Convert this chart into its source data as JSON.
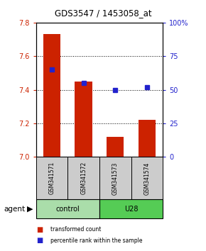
{
  "title": "GDS3547 / 1453058_at",
  "samples": [
    "GSM341571",
    "GSM341572",
    "GSM341573",
    "GSM341574"
  ],
  "bar_values": [
    7.73,
    7.45,
    7.12,
    7.22
  ],
  "percentile_pct": [
    65,
    55,
    50,
    52
  ],
  "bar_color": "#cc2200",
  "marker_color": "#2222cc",
  "ylim_left": [
    7.0,
    7.8
  ],
  "ylim_right": [
    0,
    100
  ],
  "yticks_left": [
    7.0,
    7.2,
    7.4,
    7.6,
    7.8
  ],
  "yticks_right": [
    0,
    25,
    50,
    75,
    100
  ],
  "ytick_labels_right": [
    "0",
    "25",
    "50",
    "75",
    "100%"
  ],
  "group_labels": [
    "control",
    "U28"
  ],
  "group_ranges": [
    [
      0,
      2
    ],
    [
      2,
      4
    ]
  ],
  "group_colors": [
    "#aaddaa",
    "#55cc55"
  ],
  "legend_bar_label": "transformed count",
  "legend_marker_label": "percentile rank within the sample",
  "left_tick_color": "#cc2200",
  "right_tick_color": "#2222cc",
  "bar_width": 0.55
}
